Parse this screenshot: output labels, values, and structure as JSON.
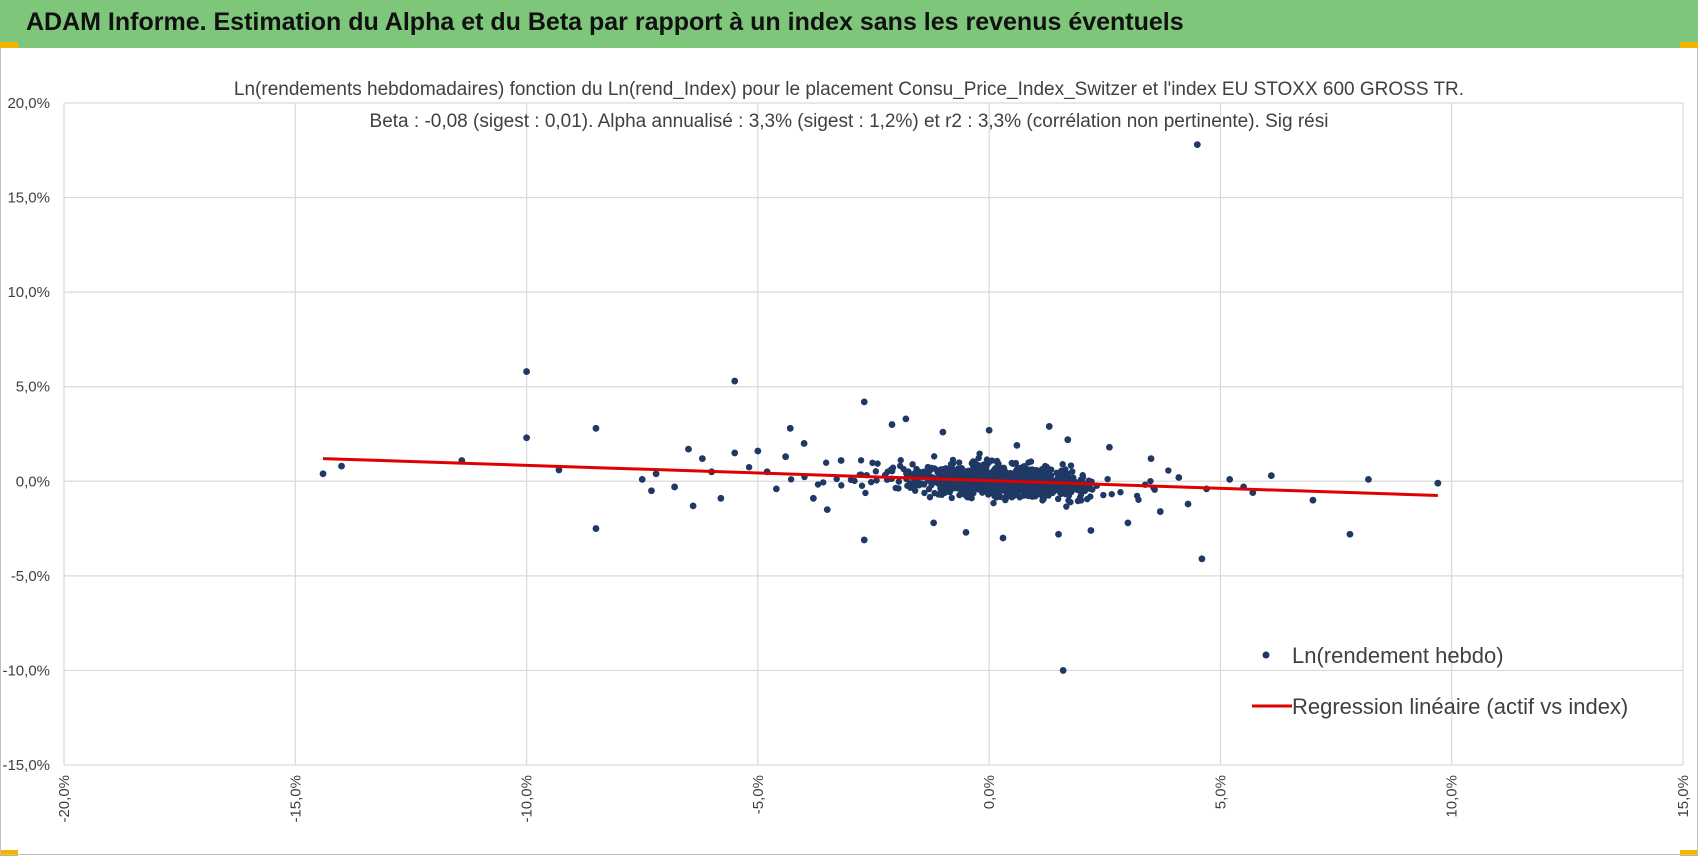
{
  "header": {
    "title": "ADAM Informe. Estimation du Alpha et du Beta par rapport à un index sans les revenus éventuels"
  },
  "colors": {
    "banner": "#7dc67a",
    "corner": "#f2b500",
    "points": "#1f3864",
    "regression": "#e00000",
    "grid": "#d9d9d9"
  },
  "chart_data": {
    "type": "scatter",
    "title_line1": "Ln(rendements hebdomadaires) fonction du Ln(rend_Index) pour le placement Consu_Price_Index_Switzer et l'index EU STOXX 600 GROSS TR.",
    "title_line2": "Beta : -0,08 (sigest : 0,01).  Alpha annualisé : 3,3% (sigest : 1,2%) et r2 : 3,3% (corrélation non pertinente). Sig rési",
    "xlim": [
      -0.2,
      0.15
    ],
    "ylim": [
      -0.15,
      0.2
    ],
    "x_ticks": [
      {
        "value": -0.2,
        "label": "-20,0%"
      },
      {
        "value": -0.15,
        "label": "-15,0%"
      },
      {
        "value": -0.1,
        "label": "-10,0%"
      },
      {
        "value": -0.05,
        "label": "-5,0%"
      },
      {
        "value": 0.0,
        "label": "0,0%"
      },
      {
        "value": 0.05,
        "label": "5,0%"
      },
      {
        "value": 0.1,
        "label": "10,0%"
      },
      {
        "value": 0.15,
        "label": "15,0%"
      }
    ],
    "y_ticks": [
      {
        "value": 0.2,
        "label": "20,0%"
      },
      {
        "value": 0.15,
        "label": "15,0%"
      },
      {
        "value": 0.1,
        "label": "10,0%"
      },
      {
        "value": 0.05,
        "label": "5,0%"
      },
      {
        "value": 0.0,
        "label": "0,0%"
      },
      {
        "value": -0.05,
        "label": "-5,0%"
      },
      {
        "value": -0.1,
        "label": "-10,0%"
      },
      {
        "value": -0.15,
        "label": "-15,0%"
      }
    ],
    "grid": true,
    "legend_position": "bottom-right",
    "series": [
      {
        "name": "Ln(rendement hebdo)",
        "kind": "scatter",
        "points": [
          [
            0.045,
            0.178
          ],
          [
            0.016,
            -0.1
          ],
          [
            -0.1,
            0.058
          ],
          [
            -0.055,
            0.053
          ],
          [
            -0.1,
            0.023
          ],
          [
            -0.085,
            0.028
          ],
          [
            -0.144,
            0.004
          ],
          [
            -0.14,
            0.008
          ],
          [
            -0.114,
            0.011
          ],
          [
            -0.093,
            0.006
          ],
          [
            -0.085,
            -0.025
          ],
          [
            -0.027,
            0.042
          ],
          [
            -0.027,
            -0.031
          ],
          [
            0.046,
            -0.041
          ],
          [
            0.078,
            -0.028
          ],
          [
            0.082,
            0.001
          ],
          [
            0.097,
            -0.001
          ],
          [
            0.07,
            -0.01
          ],
          [
            0.061,
            0.003
          ],
          [
            0.057,
            -0.006
          ],
          [
            -0.075,
            0.001
          ],
          [
            -0.073,
            -0.005
          ],
          [
            -0.072,
            0.004
          ],
          [
            -0.065,
            0.017
          ],
          [
            -0.064,
            -0.013
          ],
          [
            -0.062,
            0.012
          ],
          [
            -0.058,
            -0.009
          ],
          [
            -0.055,
            0.015
          ],
          [
            -0.05,
            0.016
          ],
          [
            -0.043,
            0.028
          ],
          [
            -0.04,
            0.02
          ],
          [
            -0.018,
            0.033
          ],
          [
            -0.021,
            0.03
          ],
          [
            -0.01,
            0.026
          ],
          [
            0.0,
            0.027
          ],
          [
            0.013,
            0.029
          ],
          [
            0.017,
            0.022
          ],
          [
            -0.005,
            -0.027
          ],
          [
            0.003,
            -0.03
          ],
          [
            0.015,
            -0.028
          ],
          [
            0.022,
            -0.026
          ],
          [
            0.03,
            -0.022
          ],
          [
            0.037,
            -0.016
          ],
          [
            0.043,
            -0.012
          ],
          [
            0.047,
            -0.004
          ],
          [
            0.052,
            0.001
          ],
          [
            0.055,
            -0.003
          ],
          [
            0.041,
            0.002
          ],
          [
            -0.048,
            0.005
          ],
          [
            -0.046,
            -0.004
          ],
          [
            -0.038,
            -0.009
          ],
          [
            -0.035,
            -0.015
          ],
          [
            -0.032,
            0.011
          ],
          [
            -0.012,
            -0.022
          ],
          [
            0.006,
            0.019
          ],
          [
            0.035,
            0.012
          ],
          [
            -0.068,
            -0.003
          ],
          [
            -0.06,
            0.005
          ],
          [
            -0.044,
            0.013
          ],
          [
            0.026,
            0.018
          ]
        ],
        "cluster_note": "dense cloud of roughly 1000 weekly observations centred near x 0,0%, y 0,0%"
      },
      {
        "name": "Regression linéaire (actif vs index)",
        "kind": "line",
        "points": [
          [
            -0.144,
            0.012
          ],
          [
            0.097,
            -0.0075
          ]
        ]
      }
    ]
  }
}
